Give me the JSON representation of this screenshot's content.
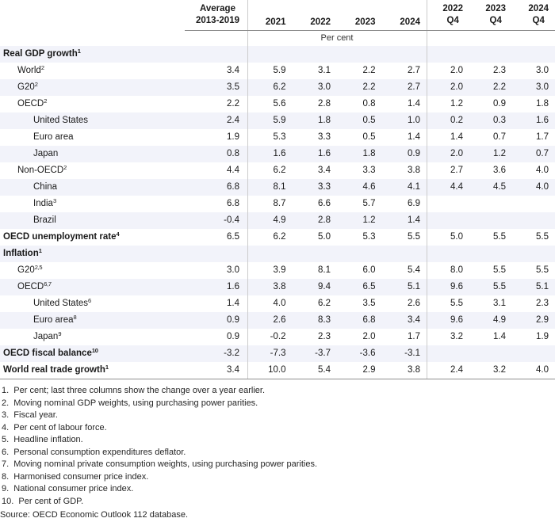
{
  "table": {
    "header": {
      "avg_col": {
        "line1": "Average",
        "line2": "2013-2019"
      },
      "years": [
        "2021",
        "2022",
        "2023",
        "2024"
      ],
      "quarters": [
        {
          "year": "2022",
          "q": "Q4"
        },
        {
          "year": "2023",
          "q": "Q4"
        },
        {
          "year": "2024",
          "q": "Q4"
        }
      ],
      "unit": "Per cent"
    },
    "rows": [
      {
        "label": "Real GDP growth",
        "sup": "1",
        "style": "section",
        "values": [
          "",
          "",
          "",
          "",
          "",
          "",
          "",
          ""
        ]
      },
      {
        "label": "World",
        "sup": "2",
        "style": "level1",
        "values": [
          "3.4",
          "5.9",
          "3.1",
          "2.2",
          "2.7",
          "2.0",
          "2.3",
          "3.0"
        ]
      },
      {
        "label": "G20",
        "sup": "2",
        "style": "level1",
        "values": [
          "3.5",
          "6.2",
          "3.0",
          "2.2",
          "2.7",
          "2.0",
          "2.2",
          "3.0"
        ]
      },
      {
        "label": "OECD",
        "sup": "2",
        "style": "level1",
        "values": [
          "2.2",
          "5.6",
          "2.8",
          "0.8",
          "1.4",
          "1.2",
          "0.9",
          "1.8"
        ]
      },
      {
        "label": "United States",
        "sup": "",
        "style": "level2",
        "values": [
          "2.4",
          "5.9",
          "1.8",
          "0.5",
          "1.0",
          "0.2",
          "0.3",
          "1.6"
        ]
      },
      {
        "label": "Euro area",
        "sup": "",
        "style": "level2",
        "values": [
          "1.9",
          "5.3",
          "3.3",
          "0.5",
          "1.4",
          "1.4",
          "0.7",
          "1.7"
        ]
      },
      {
        "label": "Japan",
        "sup": "",
        "style": "level2",
        "values": [
          "0.8",
          "1.6",
          "1.6",
          "1.8",
          "0.9",
          "2.0",
          "1.2",
          "0.7"
        ]
      },
      {
        "label": "Non-OECD",
        "sup": "2",
        "style": "level1",
        "values": [
          "4.4",
          "6.2",
          "3.4",
          "3.3",
          "3.8",
          "2.7",
          "3.6",
          "4.0"
        ]
      },
      {
        "label": "China",
        "sup": "",
        "style": "level2",
        "values": [
          "6.8",
          "8.1",
          "3.3",
          "4.6",
          "4.1",
          "4.4",
          "4.5",
          "4.0"
        ]
      },
      {
        "label": "India",
        "sup": "3",
        "style": "level2",
        "values": [
          "6.8",
          "8.7",
          "6.6",
          "5.7",
          "6.9",
          "",
          "",
          ""
        ]
      },
      {
        "label": "Brazil",
        "sup": "",
        "style": "level2",
        "values": [
          "-0.4",
          "4.9",
          "2.8",
          "1.2",
          "1.4",
          "",
          "",
          ""
        ]
      },
      {
        "label": "OECD unemployment rate",
        "sup": "4",
        "style": "section",
        "values": [
          "6.5",
          "6.2",
          "5.0",
          "5.3",
          "5.5",
          "5.0",
          "5.5",
          "5.5"
        ]
      },
      {
        "label": "Inflation",
        "sup": "1",
        "style": "section",
        "values": [
          "",
          "",
          "",
          "",
          "",
          "",
          "",
          ""
        ]
      },
      {
        "label": "G20",
        "sup": "2,5",
        "style": "level1",
        "values": [
          "3.0",
          "3.9",
          "8.1",
          "6.0",
          "5.4",
          "8.0",
          "5.5",
          "5.5"
        ]
      },
      {
        "label": "OECD",
        "sup": "6,7",
        "style": "level1",
        "values": [
          "1.6",
          "3.8",
          "9.4",
          "6.5",
          "5.1",
          "9.6",
          "5.5",
          "5.1"
        ]
      },
      {
        "label": "United States",
        "sup": "6",
        "style": "level2",
        "values": [
          "1.4",
          "4.0",
          "6.2",
          "3.5",
          "2.6",
          "5.5",
          "3.1",
          "2.3"
        ]
      },
      {
        "label": "Euro area",
        "sup": "8",
        "style": "level2",
        "values": [
          "0.9",
          "2.6",
          "8.3",
          "6.8",
          "3.4",
          "9.6",
          "4.9",
          "2.9"
        ]
      },
      {
        "label": "Japan",
        "sup": "9",
        "style": "level2",
        "values": [
          "0.9",
          "-0.2",
          "2.3",
          "2.0",
          "1.7",
          "3.2",
          "1.4",
          "1.9"
        ]
      },
      {
        "label": "OECD fiscal balance",
        "sup": "10",
        "style": "section",
        "values": [
          "-3.2",
          "-7.3",
          "-3.7",
          "-3.6",
          "-3.1",
          "",
          "",
          ""
        ]
      },
      {
        "label": "World real trade growth",
        "sup": "1",
        "style": "section",
        "values": [
          "3.4",
          "10.0",
          "5.4",
          "2.9",
          "3.8",
          "2.4",
          "3.2",
          "4.0"
        ]
      }
    ]
  },
  "footnotes": [
    "1.  Per cent; last three columns show the change over a year earlier.",
    "2.  Moving nominal GDP weights, using purchasing power parities.",
    "3.  Fiscal year.",
    "4.  Per cent of labour force.",
    "5.  Headline inflation.",
    "6.  Personal consumption expenditures deflator.",
    "7.  Moving nominal private consumption weights, using purchasing power parities.",
    "8.  Harmonised consumer price index.",
    "9.  National consumer price index.",
    "10.  Per cent of GDP."
  ],
  "source": "Source: OECD Economic Outlook 112 database.",
  "colors": {
    "row_band": "#f2f3fa",
    "rule_dark": "#8e8e8e",
    "rule_light": "#cccccc",
    "text": "#1a1a1a"
  }
}
